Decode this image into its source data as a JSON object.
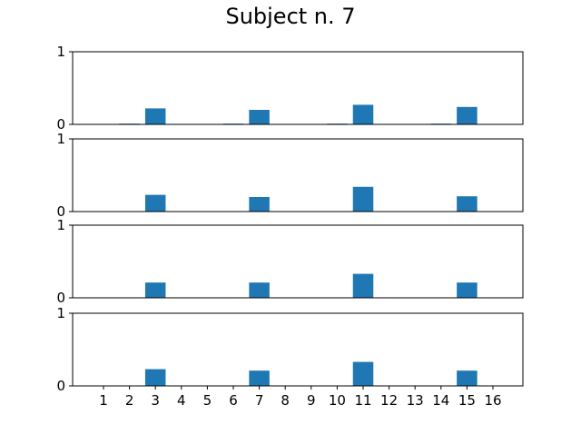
{
  "figure": {
    "title": "Subject n. 7"
  },
  "chart_data": [
    {
      "type": "bar",
      "categories": [
        "1",
        "2",
        "3",
        "4",
        "5",
        "6",
        "7",
        "8",
        "9",
        "10",
        "11",
        "12",
        "13",
        "14",
        "15",
        "16"
      ],
      "values": [
        0,
        0.01,
        0.22,
        0,
        0,
        0.01,
        0.2,
        0,
        0,
        0.01,
        0.27,
        0,
        0,
        0.01,
        0.24,
        0
      ],
      "ylim": [
        0,
        1
      ],
      "yticks": [
        "0",
        "1"
      ],
      "color": "#1f77b4",
      "show_xticks": false
    },
    {
      "type": "bar",
      "categories": [
        "1",
        "2",
        "3",
        "4",
        "5",
        "6",
        "7",
        "8",
        "9",
        "10",
        "11",
        "12",
        "13",
        "14",
        "15",
        "16"
      ],
      "values": [
        0,
        0,
        0.23,
        0,
        0,
        0,
        0.2,
        0,
        0,
        0,
        0.34,
        0,
        0,
        0,
        0.21,
        0
      ],
      "ylim": [
        0,
        1
      ],
      "yticks": [
        "0",
        "1"
      ],
      "color": "#1f77b4",
      "show_xticks": false
    },
    {
      "type": "bar",
      "categories": [
        "1",
        "2",
        "3",
        "4",
        "5",
        "6",
        "7",
        "8",
        "9",
        "10",
        "11",
        "12",
        "13",
        "14",
        "15",
        "16"
      ],
      "values": [
        0,
        0,
        0.21,
        0,
        0,
        0,
        0.21,
        0,
        0,
        0,
        0.33,
        0,
        0,
        0,
        0.21,
        0
      ],
      "ylim": [
        0,
        1
      ],
      "yticks": [
        "0",
        "1"
      ],
      "color": "#1f77b4",
      "show_xticks": false
    },
    {
      "type": "bar",
      "categories": [
        "1",
        "2",
        "3",
        "4",
        "5",
        "6",
        "7",
        "8",
        "9",
        "10",
        "11",
        "12",
        "13",
        "14",
        "15",
        "16"
      ],
      "values": [
        0,
        0,
        0.23,
        0,
        0,
        0,
        0.21,
        0,
        0,
        0,
        0.33,
        0,
        0,
        0,
        0.21,
        0
      ],
      "ylim": [
        0,
        1
      ],
      "yticks": [
        "0",
        "1"
      ],
      "color": "#1f77b4",
      "show_xticks": true
    }
  ]
}
